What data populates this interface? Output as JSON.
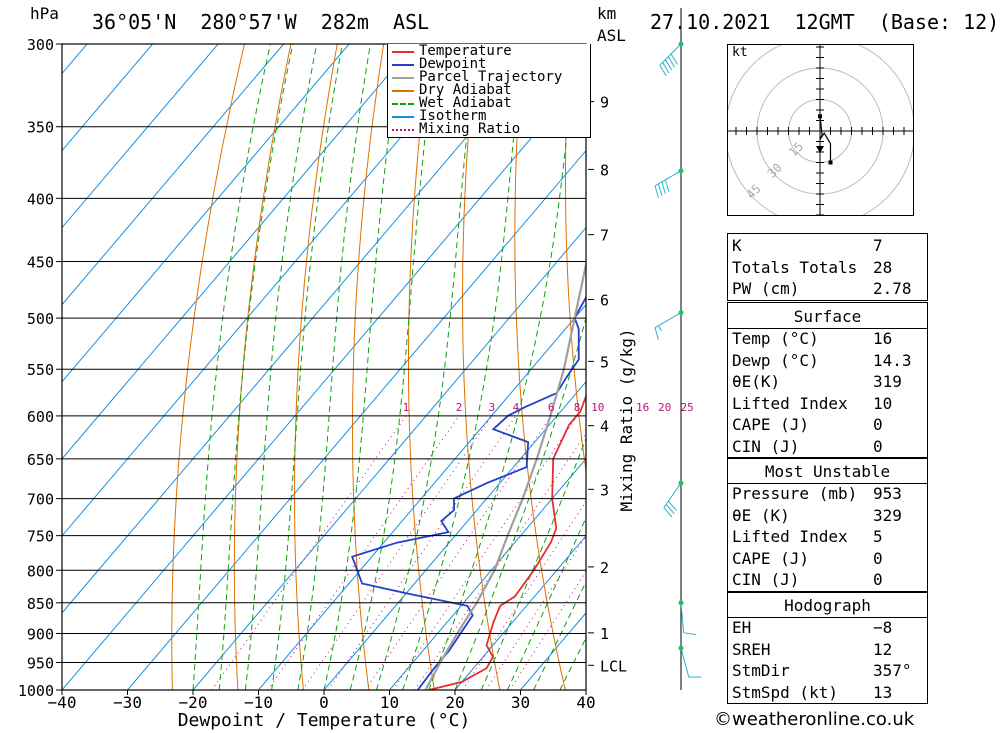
{
  "header": {
    "pressure_unit": "hPa",
    "location": "36°05'N  280°57'W  282m  ASL",
    "km_unit": "km",
    "asl_unit": "ASL",
    "datetime": "27.10.2021  12GMT  (Base: 12)"
  },
  "footer": {
    "credit": "©weatheronline.co.uk"
  },
  "chart_data": {
    "type": "line",
    "title": "36°05'N  280°57'W  282m  ASL",
    "xlabel": "Dewpoint / Temperature (°C)",
    "ylabel": "hPa",
    "secondary_ylabel": "Mixing Ratio (g/kg)",
    "xlim": [
      -40,
      40
    ],
    "ylim": [
      1000,
      300
    ],
    "x_ticks": [
      "−40",
      "−30",
      "−20",
      "−10",
      "0",
      "10",
      "20",
      "30",
      "40"
    ],
    "pressure_levels": [
      "300",
      "350",
      "400",
      "450",
      "500",
      "550",
      "600",
      "650",
      "700",
      "750",
      "800",
      "850",
      "900",
      "950",
      "1000"
    ],
    "km_ticks": [
      {
        "label": "9",
        "p": 334
      },
      {
        "label": "8",
        "p": 379
      },
      {
        "label": "7",
        "p": 428
      },
      {
        "label": "6",
        "p": 483
      },
      {
        "label": "5",
        "p": 542
      },
      {
        "label": "4",
        "p": 611
      },
      {
        "label": "3",
        "p": 688
      },
      {
        "label": "2",
        "p": 795
      },
      {
        "label": "1",
        "p": 899
      },
      {
        "label": "LCL",
        "p": 955
      }
    ],
    "mixing_ratio_labels": [
      "1",
      "2",
      "3",
      "4",
      "6",
      "8",
      "10",
      "16",
      "20",
      "25"
    ],
    "legend": [
      {
        "label": "Temperature",
        "color": "#e03030",
        "style": "solid"
      },
      {
        "label": "Dewpoint",
        "color": "#2040d0",
        "style": "solid"
      },
      {
        "label": "Parcel Trajectory",
        "color": "#a0a0a0",
        "style": "solid"
      },
      {
        "label": "Dry Adiabat",
        "color": "#e07000",
        "style": "solid"
      },
      {
        "label": "Wet Adiabat",
        "color": "#10a010",
        "style": "dashed"
      },
      {
        "label": "Isotherm",
        "color": "#1890e0",
        "style": "solid"
      },
      {
        "label": "Mixing Ratio",
        "color": "#c0107a",
        "style": "dotted"
      }
    ],
    "legend_position": "top-right",
    "series": [
      {
        "name": "Temperature",
        "color": "#e03030",
        "points": [
          [
            1000,
            16
          ],
          [
            985,
            20
          ],
          [
            960,
            22
          ],
          [
            940,
            21.5
          ],
          [
            920,
            19
          ],
          [
            880,
            17
          ],
          [
            855,
            16
          ],
          [
            840,
            17
          ],
          [
            800,
            16.5
          ],
          [
            760,
            15.5
          ],
          [
            740,
            14.5
          ],
          [
            700,
            10
          ],
          [
            650,
            5
          ],
          [
            610,
            3
          ],
          [
            595,
            3
          ],
          [
            580,
            2
          ],
          [
            550,
            0
          ],
          [
            520,
            -2
          ],
          [
            495,
            -4
          ],
          [
            470,
            -5.5
          ],
          [
            450,
            -8
          ],
          [
            420,
            -11
          ],
          [
            390,
            -14
          ],
          [
            380,
            -15.5
          ],
          [
            360,
            -18.5
          ],
          [
            345,
            -20
          ],
          [
            320,
            -26
          ],
          [
            300,
            -29
          ]
        ]
      },
      {
        "name": "Dewpoint",
        "color": "#2040d0",
        "points": [
          [
            1000,
            14.3
          ],
          [
            960,
            14
          ],
          [
            930,
            14
          ],
          [
            900,
            13.5
          ],
          [
            870,
            13
          ],
          [
            855,
            11
          ],
          [
            835,
            0
          ],
          [
            820,
            -8
          ],
          [
            780,
            -13
          ],
          [
            760,
            -8
          ],
          [
            745,
            -1.5
          ],
          [
            730,
            -4
          ],
          [
            715,
            -3.5
          ],
          [
            700,
            -5
          ],
          [
            680,
            -2
          ],
          [
            660,
            2
          ],
          [
            630,
            -1
          ],
          [
            615,
            -8
          ],
          [
            600,
            -7.5
          ],
          [
            590,
            -6
          ],
          [
            575,
            -3
          ],
          [
            560,
            -3.5
          ],
          [
            540,
            -4
          ],
          [
            510,
            -8
          ],
          [
            500,
            -10
          ],
          [
            480,
            -11
          ],
          [
            460,
            -13
          ],
          [
            440,
            -15
          ],
          [
            410,
            -17
          ],
          [
            385,
            -20
          ],
          [
            370,
            -21
          ],
          [
            345,
            -23
          ],
          [
            338,
            -24
          ],
          [
            320,
            -28
          ],
          [
            305,
            -32
          ],
          [
            300,
            -33
          ]
        ]
      },
      {
        "name": "Parcel Trajectory",
        "color": "#a0a0a0",
        "points": [
          [
            1000,
            15.5
          ],
          [
            955,
            14.3
          ],
          [
            900,
            13
          ],
          [
            850,
            12
          ],
          [
            800,
            10.5
          ],
          [
            750,
            8
          ],
          [
            700,
            5.5
          ],
          [
            650,
            2.5
          ],
          [
            600,
            -1
          ],
          [
            550,
            -5
          ],
          [
            500,
            -10
          ],
          [
            450,
            -15.5
          ],
          [
            400,
            -22
          ],
          [
            350,
            -30
          ],
          [
            300,
            -39
          ]
        ]
      }
    ]
  },
  "hodograph": {
    "unit": "kt",
    "ring_labels": [
      "15",
      "30",
      "45"
    ],
    "points_kt": [
      [
        0,
        7
      ],
      [
        1,
        -2
      ],
      [
        0,
        -4
      ],
      [
        2,
        -1
      ],
      [
        5,
        -6
      ],
      [
        5,
        -15
      ]
    ]
  },
  "wind_barbs": [
    {
      "p": 300,
      "dir": 225,
      "speed_kt": 50
    },
    {
      "p": 380,
      "dir": 240,
      "speed_kt": 40
    },
    {
      "p": 495,
      "dir": 240,
      "speed_kt": 15
    },
    {
      "p": 680,
      "dir": 215,
      "speed_kt": 30
    },
    {
      "p": 850,
      "dir": 175,
      "speed_kt": 10
    },
    {
      "p": 925,
      "dir": 165,
      "speed_kt": 10
    }
  ],
  "indices": [
    {
      "label": "K",
      "value": "7"
    },
    {
      "label": "Totals Totals",
      "value": "28"
    },
    {
      "label": "PW (cm)",
      "value": "2.78"
    }
  ],
  "surface": {
    "title": "Surface",
    "rows": [
      {
        "label": "Temp (°C)",
        "value": "16"
      },
      {
        "label": "Dewp (°C)",
        "value": "14.3"
      },
      {
        "label": "θE(K)",
        "value": "319"
      },
      {
        "label": "Lifted Index",
        "value": "10"
      },
      {
        "label": "CAPE (J)",
        "value": "0"
      },
      {
        "label": "CIN (J)",
        "value": "0"
      }
    ]
  },
  "most_unstable": {
    "title": "Most Unstable",
    "rows": [
      {
        "label": "Pressure (mb)",
        "value": "953"
      },
      {
        "label": "θE (K)",
        "value": "329"
      },
      {
        "label": "Lifted Index",
        "value": "5"
      },
      {
        "label": "CAPE (J)",
        "value": "0"
      },
      {
        "label": "CIN (J)",
        "value": "0"
      }
    ]
  },
  "hodograph_table": {
    "title": "Hodograph",
    "rows": [
      {
        "label": "EH",
        "value": "−8"
      },
      {
        "label": "SREH",
        "value": "12"
      },
      {
        "label": "StmDir",
        "value": "357°"
      },
      {
        "label": "StmSpd (kt)",
        "value": "13"
      }
    ]
  },
  "colors": {
    "temperature": "#e03030",
    "dewpoint": "#2040d0",
    "parcel": "#a0a0a0",
    "dry_adiabat": "#e07000",
    "wet_adiabat": "#10a010",
    "isotherm": "#1890e0",
    "mixing_ratio": "#c0107a",
    "barb": "#30b0d0"
  }
}
